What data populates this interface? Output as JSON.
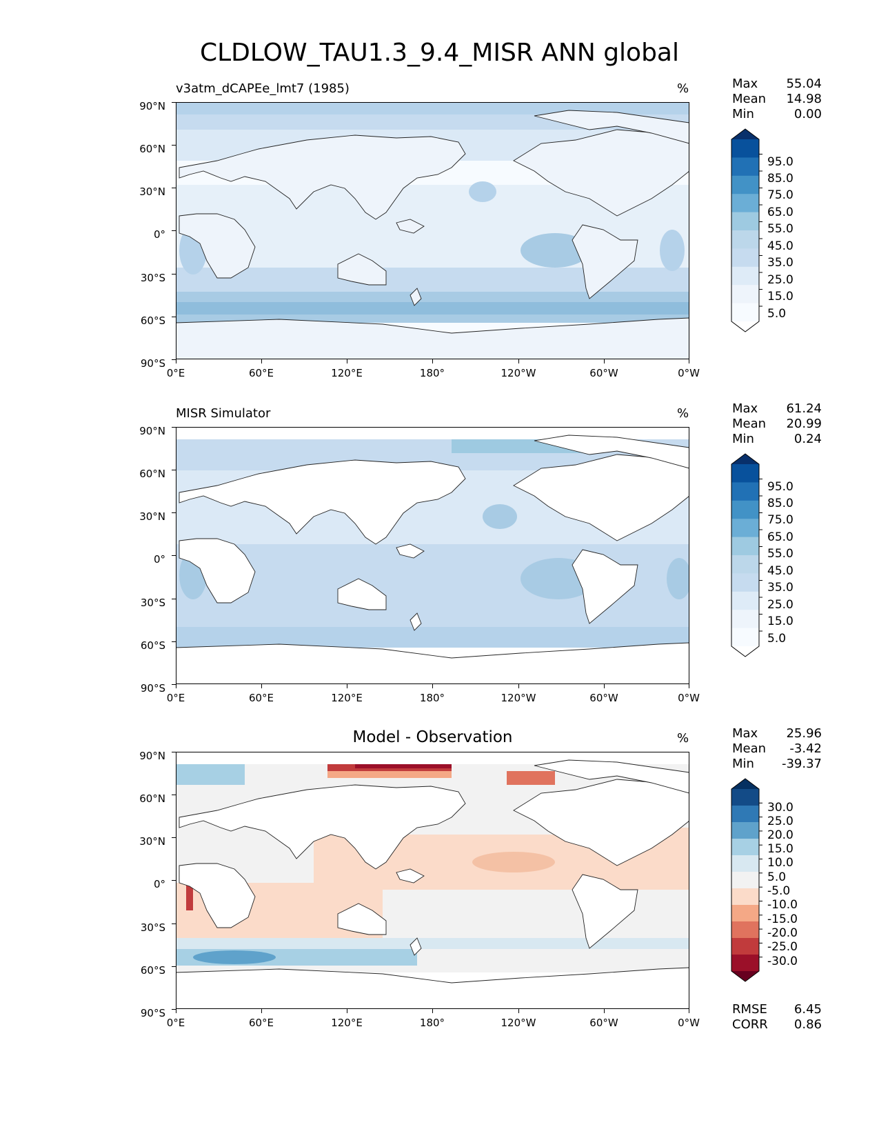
{
  "title": "CLDLOW_TAU1.3_9.4_MISR ANN global",
  "axes": {
    "lat_labels": [
      "90°N",
      "60°N",
      "30°N",
      "0°",
      "30°S",
      "60°S",
      "90°S"
    ],
    "lon_labels": [
      "0°E",
      "60°E",
      "120°E",
      "180°",
      "120°W",
      "60°W",
      "0°W"
    ]
  },
  "panels": [
    {
      "title_left": "v3atm_dCAPEe_lmt7 (1985)",
      "title_center": "",
      "units": "%",
      "stats": [
        {
          "label": "Max",
          "value": "55.04"
        },
        {
          "label": "Mean",
          "value": "14.98"
        },
        {
          "label": "Min",
          "value": "0.00"
        }
      ],
      "colorbar": {
        "labels": [
          "95.0",
          "85.0",
          "75.0",
          "65.0",
          "55.0",
          "45.0",
          "35.0",
          "25.0",
          "15.0",
          "5.0"
        ],
        "colors": [
          "#08306b",
          "#08519c",
          "#2171b5",
          "#4292c6",
          "#6baed6",
          "#9ecae1",
          "#bcd7ea",
          "#c6dbef",
          "#deebf7",
          "#eef4fb",
          "#f7fbff",
          "#ffffff"
        ]
      },
      "extra_stats": []
    },
    {
      "title_left": "MISR Simulator",
      "title_center": "",
      "units": "%",
      "stats": [
        {
          "label": "Max",
          "value": "61.24"
        },
        {
          "label": "Mean",
          "value": "20.99"
        },
        {
          "label": "Min",
          "value": "0.24"
        }
      ],
      "colorbar": {
        "labels": [
          "95.0",
          "85.0",
          "75.0",
          "65.0",
          "55.0",
          "45.0",
          "35.0",
          "25.0",
          "15.0",
          "5.0"
        ],
        "colors": [
          "#08306b",
          "#08519c",
          "#2171b5",
          "#4292c6",
          "#6baed6",
          "#9ecae1",
          "#bcd7ea",
          "#c6dbef",
          "#deebf7",
          "#eef4fb",
          "#f7fbff",
          "#ffffff"
        ]
      },
      "extra_stats": []
    },
    {
      "title_left": "",
      "title_center": "Model - Observation",
      "units": "%",
      "stats": [
        {
          "label": "Max",
          "value": "25.96"
        },
        {
          "label": "Mean",
          "value": "-3.42"
        },
        {
          "label": "Min",
          "value": "-39.37"
        }
      ],
      "colorbar": {
        "labels": [
          "30.0",
          "25.0",
          "20.0",
          "15.0",
          "10.0",
          "5.0",
          "-5.0",
          "-10.0",
          "-15.0",
          "-20.0",
          "-25.0",
          "-30.0"
        ],
        "colors": [
          "#053061",
          "#134b87",
          "#2f79b5",
          "#5fa2cb",
          "#a7d0e4",
          "#d8e8f1",
          "#f2f2f2",
          "#fbdbc9",
          "#f4a886",
          "#e0735e",
          "#c13b3c",
          "#9b1029",
          "#67001f"
        ]
      },
      "extra_stats": [
        {
          "label": "RMSE",
          "value": "6.45"
        },
        {
          "label": "CORR",
          "value": "0.86"
        }
      ]
    }
  ]
}
